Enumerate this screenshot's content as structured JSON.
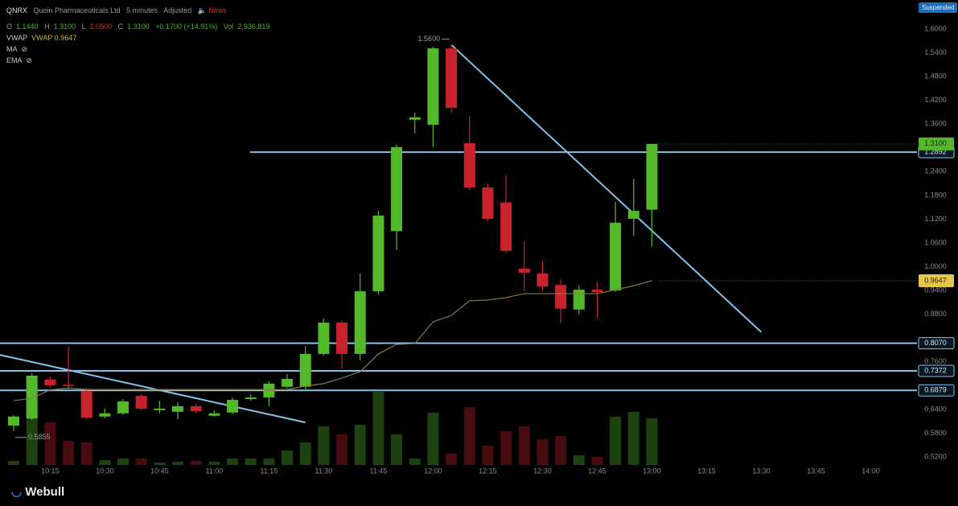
{
  "header": {
    "symbol": "QNRX",
    "company": "Quoin Pharmaceuticals Ltd",
    "interval": "5 minutes",
    "adjustment": "Adjusted",
    "news": "News",
    "status": "Suspended",
    "open_label": "O",
    "open": "1.1440",
    "high_label": "H",
    "high": "1.3100",
    "low_label": "L",
    "low": "1.0500",
    "close_label": "C",
    "close": "1.3100",
    "change": "+0.1700 (+14.91%)",
    "volume_label": "Vol",
    "volume": "2,936,819",
    "indicators": [
      "VWAP",
      "MA",
      "EMA"
    ],
    "vwap_value": "VWAP 0.9647"
  },
  "logo": "Webull",
  "chart_data": {
    "type": "candlestick",
    "categories": [
      null,
      null,
      "10:15",
      null,
      null,
      "10:30",
      null,
      null,
      "10:45",
      null,
      null,
      "11:00",
      null,
      null,
      "11:15",
      null,
      null,
      "11:30",
      null,
      null,
      "11:45",
      null,
      null,
      "12:00",
      null,
      null,
      "12:15",
      null,
      null,
      "12:30",
      null,
      null,
      "12:45",
      null,
      null,
      "13:00",
      null,
      null,
      "13:15",
      null,
      null,
      "13:30",
      null,
      null,
      "13:45",
      null,
      null,
      "14:00"
    ],
    "open": [
      0.599,
      0.617,
      0.715,
      0.702,
      0.686,
      0.622,
      0.63,
      0.674,
      0.638,
      0.634,
      0.648,
      0.624,
      0.632,
      0.666,
      0.67,
      0.697,
      0.697,
      0.78,
      0.859,
      0.78,
      0.938,
      1.09,
      1.371,
      1.358,
      1.551,
      1.312,
      1.2,
      1.162,
      0.995,
      0.983,
      0.954,
      0.892,
      0.942,
      0.94,
      1.121,
      1.144,
      null,
      null,
      null,
      null,
      null,
      null,
      null,
      null,
      null,
      null,
      null,
      null
    ],
    "high": [
      0.625,
      0.731,
      0.723,
      0.8,
      0.695,
      0.642,
      0.666,
      0.678,
      0.662,
      0.658,
      0.654,
      0.638,
      0.67,
      0.678,
      0.711,
      0.729,
      0.8,
      0.869,
      0.865,
      0.983,
      1.141,
      1.308,
      1.389,
      1.555,
      1.56,
      1.379,
      1.21,
      1.231,
      1.064,
      1.013,
      0.968,
      0.952,
      0.962,
      1.164,
      1.222,
      1.31,
      null,
      null,
      null,
      null,
      null,
      null,
      null,
      null,
      null,
      null,
      null,
      null
    ],
    "low": [
      0.5855,
      0.613,
      0.695,
      0.69,
      0.615,
      0.617,
      0.626,
      0.638,
      0.63,
      0.615,
      0.63,
      0.622,
      0.628,
      0.662,
      0.648,
      0.693,
      0.689,
      0.776,
      0.743,
      0.764,
      0.93,
      1.043,
      1.336,
      1.302,
      1.389,
      1.194,
      1.115,
      1.034,
      0.938,
      0.938,
      0.857,
      0.88,
      0.872,
      0.936,
      1.078,
      1.05,
      null,
      null,
      null,
      null,
      null,
      null,
      null,
      null,
      null,
      null,
      null,
      null
    ],
    "close": [
      0.622,
      0.725,
      0.701,
      0.7,
      0.619,
      0.63,
      0.66,
      0.642,
      0.642,
      0.648,
      0.636,
      0.63,
      0.664,
      0.67,
      0.705,
      0.717,
      0.78,
      0.859,
      0.78,
      0.938,
      1.129,
      1.302,
      1.377,
      1.551,
      1.401,
      1.2,
      1.121,
      1.04,
      0.985,
      0.95,
      0.894,
      0.942,
      0.936,
      1.111,
      1.141,
      1.31,
      null,
      null,
      null,
      null,
      null,
      null,
      null,
      null,
      null,
      null,
      null,
      null
    ],
    "volume": [
      13350,
      168210,
      141510,
      80100,
      74760,
      16020,
      21360,
      21360,
      8010,
      10680,
      13350,
      10680,
      21360,
      21360,
      21360,
      48060,
      74760,
      128160,
      101460,
      133500,
      242970,
      101460,
      21360,
      173550,
      37380,
      192240,
      64080,
      112140,
      128160,
      85440,
      96120,
      32040,
      26700,
      160200,
      176220,
      154860,
      null,
      null,
      null,
      null,
      null,
      null,
      null,
      null,
      null,
      null,
      null,
      null
    ],
    "vwap": [
      0.662,
      0.668,
      0.689,
      0.694,
      0.69,
      0.69,
      0.69,
      0.69,
      0.69,
      0.69,
      0.69,
      0.69,
      0.69,
      0.69,
      0.69,
      0.69,
      0.699,
      0.705,
      0.719,
      0.735,
      0.78,
      0.804,
      0.806,
      0.861,
      0.877,
      0.914,
      0.916,
      0.922,
      0.932,
      0.932,
      0.932,
      0.932,
      0.932,
      0.942,
      0.952,
      0.9647,
      null,
      null,
      null,
      null,
      null,
      null,
      null,
      null,
      null,
      null,
      null,
      null
    ],
    "up_color": "#53b92b",
    "down_color": "#c8232c",
    "vwap_color": "#8a7848",
    "line_color": "#82c3ea",
    "ylim": [
      0.52,
      1.6
    ],
    "yticks": [
      {
        "value": 1.6,
        "label": "1.6000"
      },
      {
        "value": 1.54,
        "label": "1.5400"
      },
      {
        "value": 1.48,
        "label": "1.4800"
      },
      {
        "value": 1.42,
        "label": "1.4200"
      },
      {
        "value": 1.36,
        "label": "1.3600"
      },
      {
        "value": 1.24,
        "label": "1.2400"
      },
      {
        "value": 1.18,
        "label": "1.1800"
      },
      {
        "value": 1.12,
        "label": "1.1200"
      },
      {
        "value": 1.06,
        "label": "1.0600"
      },
      {
        "value": 1.0,
        "label": "1.0000"
      },
      {
        "value": 0.94,
        "label": "0.9400"
      },
      {
        "value": 0.88,
        "label": "0.8800"
      },
      {
        "value": 0.76,
        "label": "0.7600"
      },
      {
        "value": 0.64,
        "label": "0.6400"
      },
      {
        "value": 0.58,
        "label": "0.5800"
      },
      {
        "value": 0.52,
        "label": "0.5200"
      }
    ],
    "price_lines": [
      {
        "value": 1.2892,
        "label": "1.2892"
      },
      {
        "value": 0.807,
        "label": "0.8070"
      },
      {
        "value": 0.7372,
        "label": "0.7372"
      },
      {
        "value": 0.6879,
        "label": "0.6879"
      }
    ],
    "last_price": {
      "value": 1.31,
      "label": "1.3100"
    },
    "vwap_last": {
      "value": 0.9647,
      "label": "0.9647"
    },
    "annotations": [
      {
        "value": 1.56,
        "label": "1.5600"
      },
      {
        "value": 0.5855,
        "label": "0.5855"
      }
    ],
    "trendlines": [
      {
        "from": [
          24,
          1.56
        ],
        "to": [
          41,
          0.835
        ]
      },
      {
        "from": [
          -1,
          0.78
        ],
        "to": [
          16,
          0.607
        ]
      }
    ]
  }
}
